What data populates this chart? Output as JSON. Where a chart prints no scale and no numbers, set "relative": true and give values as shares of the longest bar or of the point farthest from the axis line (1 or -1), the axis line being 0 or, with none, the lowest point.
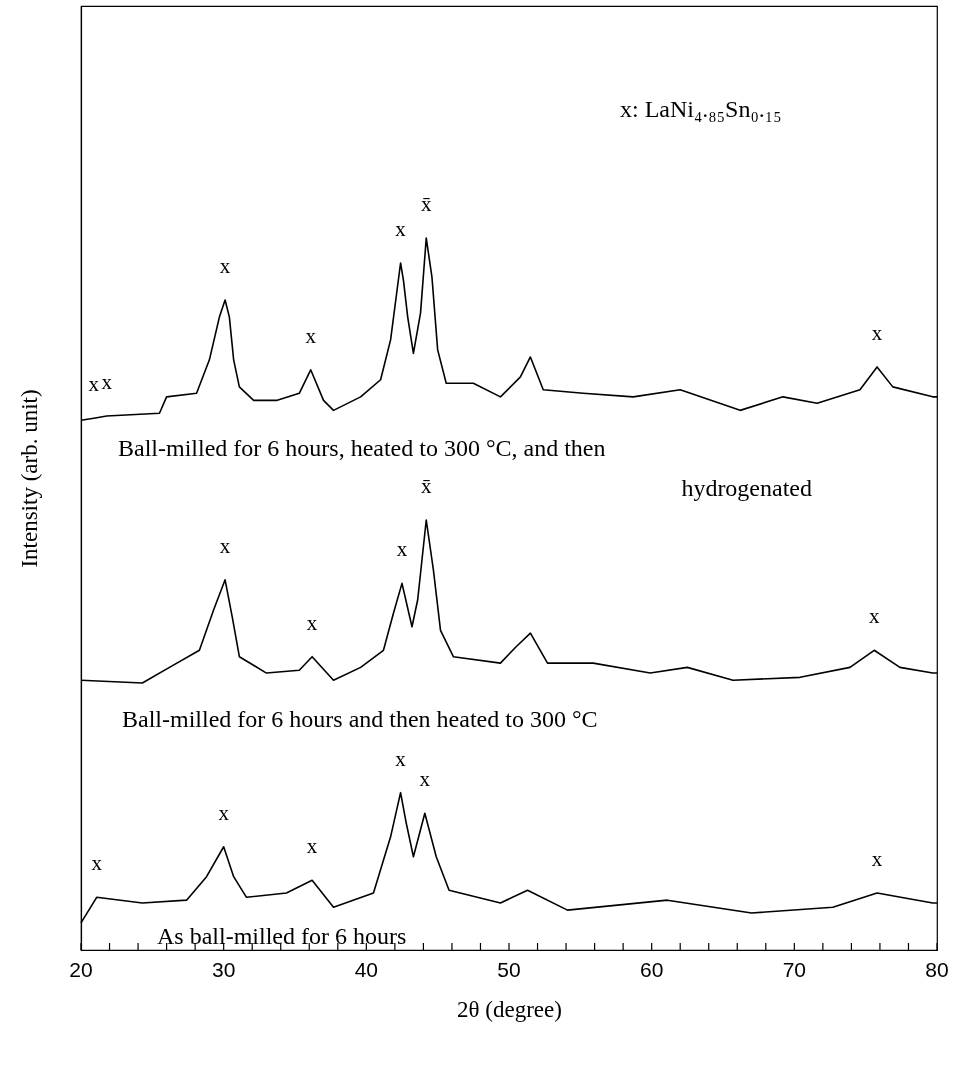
{
  "chart_data": {
    "type": "line",
    "relative": true,
    "xlabel": "2θ (degree)",
    "ylabel": "Intensity (arb. unit)",
    "xlim": [
      20,
      80
    ],
    "xticks": [
      20,
      {
        "value": 22,
        "label": null
      },
      {
        "value": 24,
        "label": null
      },
      {
        "value": 26,
        "label": null
      },
      {
        "value": 28,
        "label": null
      },
      30,
      {
        "value": 32,
        "label": null
      },
      {
        "value": 34,
        "label": null
      },
      {
        "value": 36,
        "label": null
      },
      {
        "value": 38,
        "label": null
      },
      40,
      {
        "value": 42,
        "label": null
      },
      {
        "value": 44,
        "label": null
      },
      {
        "value": 46,
        "label": null
      },
      {
        "value": 48,
        "label": null
      },
      50,
      {
        "value": 52,
        "label": null
      },
      {
        "value": 54,
        "label": null
      },
      {
        "value": 56,
        "label": null
      },
      {
        "value": 58,
        "label": null
      },
      60,
      {
        "value": 62,
        "label": null
      },
      {
        "value": 64,
        "label": null
      },
      {
        "value": 66,
        "label": null
      },
      {
        "value": 68,
        "label": null
      },
      70,
      {
        "value": 72,
        "label": null
      },
      {
        "value": 74,
        "label": null
      },
      {
        "value": 76,
        "label": null
      },
      {
        "value": 78,
        "label": null
      },
      80
    ],
    "grid": false,
    "marker": "none",
    "line_style": "solid",
    "series": [
      {
        "name": "Ball-milled for 6 hours, heated to 300 °C, and then hydrogenated",
        "color": "#000000",
        "x": [
          20,
          20.9,
          21.8,
          25.5,
          26,
          28.1,
          29,
          29.7,
          30.1,
          30.4,
          30.7,
          31.1,
          32.1,
          33.7,
          35.3,
          36.1,
          37,
          37.7,
          39.6,
          41,
          41.7,
          42.4,
          42.6,
          42.9,
          43.3,
          43.8,
          44.2,
          44.6,
          45,
          45.6,
          47.5,
          49.4,
          50.8,
          51.5,
          52.4,
          55.2,
          58.7,
          62,
          66.2,
          69.2,
          71.6,
          74.6,
          75.8,
          76.9,
          79.7,
          80
        ],
        "values": [
          0.744,
          0.747,
          0.75,
          0.754,
          0.777,
          0.782,
          0.829,
          0.889,
          0.913,
          0.889,
          0.829,
          0.791,
          0.772,
          0.772,
          0.782,
          0.815,
          0.772,
          0.758,
          0.777,
          0.801,
          0.857,
          0.965,
          0.941,
          0.889,
          0.838,
          0.895,
          1.0,
          0.945,
          0.843,
          0.796,
          0.796,
          0.777,
          0.805,
          0.833,
          0.787,
          0.782,
          0.777,
          0.787,
          0.758,
          0.777,
          0.768,
          0.787,
          0.819,
          0.791,
          0.777,
          0.777
        ]
      },
      {
        "name": "Ball-milled for 6 hours and then heated to 300 °C",
        "color": "#000000",
        "x": [
          20,
          24.3,
          26.2,
          28.3,
          29.3,
          30.1,
          30.6,
          31.1,
          33,
          35.3,
          36.2,
          37.7,
          39.6,
          41.2,
          41.9,
          42.5,
          43.2,
          43.6,
          44.2,
          44.7,
          45.2,
          46.1,
          49.4,
          50.5,
          51.5,
          52.7,
          55.9,
          59.9,
          62.5,
          65.7,
          70.4,
          73.9,
          75.6,
          77.4,
          79.7,
          80
        ],
        "values": [
          0.379,
          0.375,
          0.397,
          0.421,
          0.478,
          0.52,
          0.468,
          0.412,
          0.389,
          0.393,
          0.412,
          0.379,
          0.397,
          0.421,
          0.473,
          0.515,
          0.454,
          0.492,
          0.604,
          0.534,
          0.449,
          0.412,
          0.403,
          0.426,
          0.445,
          0.403,
          0.403,
          0.389,
          0.397,
          0.379,
          0.383,
          0.397,
          0.421,
          0.397,
          0.389,
          0.389
        ]
      },
      {
        "name": "As ball-milled for 6 hours",
        "color": "#000000",
        "x": [
          20,
          21.1,
          24.3,
          27.4,
          28.8,
          30,
          30.7,
          31.6,
          34.4,
          36.2,
          37.7,
          40.5,
          41.7,
          42.4,
          42.8,
          43.3,
          44.1,
          44.9,
          45.8,
          49.4,
          51.3,
          54.1,
          61.1,
          67,
          72.7,
          75.8,
          79.7,
          80
        ],
        "values": [
          0.038,
          0.074,
          0.066,
          0.07,
          0.103,
          0.145,
          0.103,
          0.074,
          0.08,
          0.098,
          0.06,
          0.08,
          0.159,
          0.221,
          0.178,
          0.131,
          0.192,
          0.131,
          0.084,
          0.066,
          0.084,
          0.056,
          0.07,
          0.052,
          0.06,
          0.08,
          0.066,
          0.066
        ]
      }
    ],
    "annotations": [
      "x: LaNi₄.₈₅Sn₀.₁₅",
      {
        "text": "x",
        "x": 20.9,
        "y": 0.747
      },
      {
        "text": "x",
        "x": 21.8,
        "y": 0.75
      },
      {
        "text": "x",
        "x": 30.1,
        "y": 0.913
      },
      {
        "text": "x",
        "x": 36.1,
        "y": 0.815
      },
      {
        "text": "x",
        "x": 42.4,
        "y": 0.965
      },
      {
        "text": "x̄",
        "x": 44.2,
        "y": 1.0
      },
      {
        "text": "x",
        "x": 75.8,
        "y": 0.819
      },
      {
        "text": "x",
        "x": 30.1,
        "y": 0.52
      },
      {
        "text": "x",
        "x": 36.2,
        "y": 0.412
      },
      {
        "text": "x",
        "x": 42.5,
        "y": 0.515
      },
      {
        "text": "x̄",
        "x": 44.2,
        "y": 0.604
      },
      {
        "text": "x",
        "x": 75.6,
        "y": 0.421
      },
      {
        "text": "x",
        "x": 21.1,
        "y": 0.074
      },
      {
        "text": "x",
        "x": 30,
        "y": 0.145
      },
      {
        "text": "x",
        "x": 36.2,
        "y": 0.098
      },
      {
        "text": "x",
        "x": 42.4,
        "y": 0.221
      },
      {
        "text": "x",
        "x": 44.1,
        "y": 0.192
      },
      {
        "text": "x",
        "x": 75.8,
        "y": 0.08
      }
    ]
  }
}
